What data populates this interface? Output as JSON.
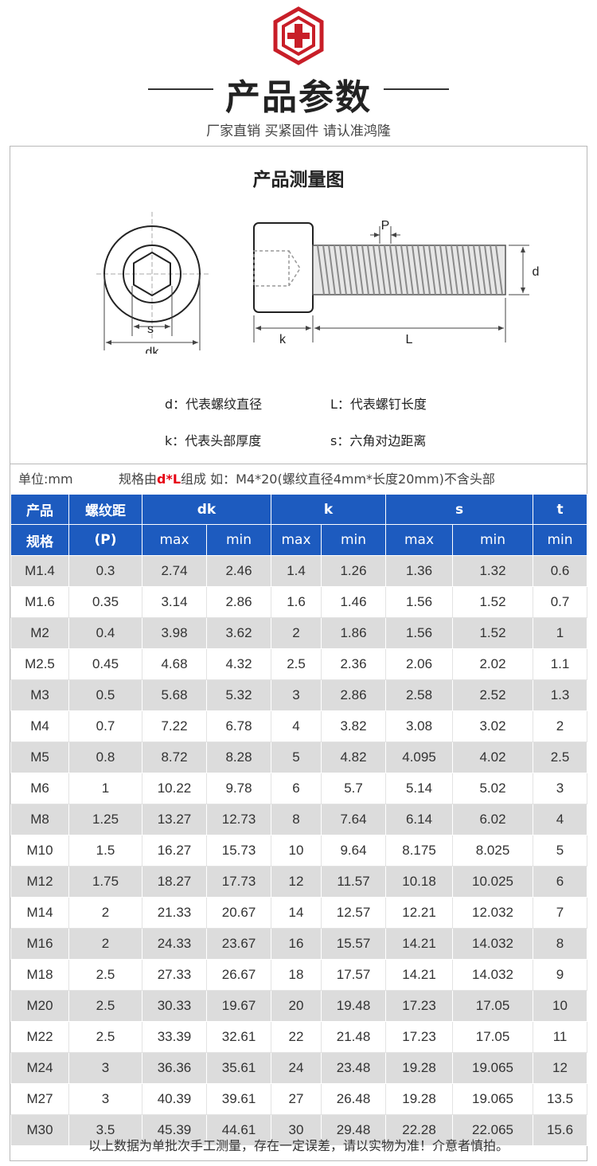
{
  "header": {
    "title": "产品参数",
    "subtitle": "厂家直销 买紧固件 请认准鸿隆"
  },
  "diagram": {
    "title": "产品测量图",
    "labels": {
      "s": "s",
      "dk": "dk",
      "k": "k",
      "L": "L",
      "P": "P",
      "d": "d"
    },
    "legend": {
      "d": "d：代表螺纹直径",
      "L": "L：代表螺钉长度",
      "k": "k：代表头部厚度",
      "s": "s：六角对边距离"
    }
  },
  "info": {
    "unit": "单位:mm",
    "rule_prefix": "规格由",
    "rule_highlight": "d*L",
    "rule_suffix": "组成 如：M4*20(螺纹直径4mm*长度20mm)不含头部"
  },
  "table": {
    "headers": {
      "spec_top": "产品",
      "spec_bottom": "规格",
      "pitch_top": "螺纹距",
      "pitch_bottom": "(P)",
      "dk": "dk",
      "k": "k",
      "s": "s",
      "t": "t",
      "max": "max",
      "min": "min"
    },
    "rows": [
      [
        "M1.4",
        "0.3",
        "2.74",
        "2.46",
        "1.4",
        "1.26",
        "1.36",
        "1.32",
        "0.6"
      ],
      [
        "M1.6",
        "0.35",
        "3.14",
        "2.86",
        "1.6",
        "1.46",
        "1.56",
        "1.52",
        "0.7"
      ],
      [
        "M2",
        "0.4",
        "3.98",
        "3.62",
        "2",
        "1.86",
        "1.56",
        "1.52",
        "1"
      ],
      [
        "M2.5",
        "0.45",
        "4.68",
        "4.32",
        "2.5",
        "2.36",
        "2.06",
        "2.02",
        "1.1"
      ],
      [
        "M3",
        "0.5",
        "5.68",
        "5.32",
        "3",
        "2.86",
        "2.58",
        "2.52",
        "1.3"
      ],
      [
        "M4",
        "0.7",
        "7.22",
        "6.78",
        "4",
        "3.82",
        "3.08",
        "3.02",
        "2"
      ],
      [
        "M5",
        "0.8",
        "8.72",
        "8.28",
        "5",
        "4.82",
        "4.095",
        "4.02",
        "2.5"
      ],
      [
        "M6",
        "1",
        "10.22",
        "9.78",
        "6",
        "5.7",
        "5.14",
        "5.02",
        "3"
      ],
      [
        "M8",
        "1.25",
        "13.27",
        "12.73",
        "8",
        "7.64",
        "6.14",
        "6.02",
        "4"
      ],
      [
        "M10",
        "1.5",
        "16.27",
        "15.73",
        "10",
        "9.64",
        "8.175",
        "8.025",
        "5"
      ],
      [
        "M12",
        "1.75",
        "18.27",
        "17.73",
        "12",
        "11.57",
        "10.18",
        "10.025",
        "6"
      ],
      [
        "M14",
        "2",
        "21.33",
        "20.67",
        "14",
        "12.57",
        "12.21",
        "12.032",
        "7"
      ],
      [
        "M16",
        "2",
        "24.33",
        "23.67",
        "16",
        "15.57",
        "14.21",
        "14.032",
        "8"
      ],
      [
        "M18",
        "2.5",
        "27.33",
        "26.67",
        "18",
        "17.57",
        "14.21",
        "14.032",
        "9"
      ],
      [
        "M20",
        "2.5",
        "30.33",
        "19.67",
        "20",
        "19.48",
        "17.23",
        "17.05",
        "10"
      ],
      [
        "M22",
        "2.5",
        "33.39",
        "32.61",
        "22",
        "21.48",
        "17.23",
        "17.05",
        "11"
      ],
      [
        "M24",
        "3",
        "36.36",
        "35.61",
        "24",
        "23.48",
        "19.28",
        "19.065",
        "12"
      ],
      [
        "M27",
        "3",
        "40.39",
        "39.61",
        "27",
        "26.48",
        "19.28",
        "19.065",
        "13.5"
      ],
      [
        "M30",
        "3.5",
        "45.39",
        "44.61",
        "30",
        "29.48",
        "22.28",
        "22.065",
        "15.6"
      ]
    ]
  },
  "footnote": "以上数据为单批次手工测量，存在一定误差，请以实物为准！介意者慎拍。",
  "colors": {
    "accent": "#1d5bbf",
    "highlight": "#e60012",
    "logo": "#c81e28",
    "row_shade": "#dcdcdc"
  }
}
